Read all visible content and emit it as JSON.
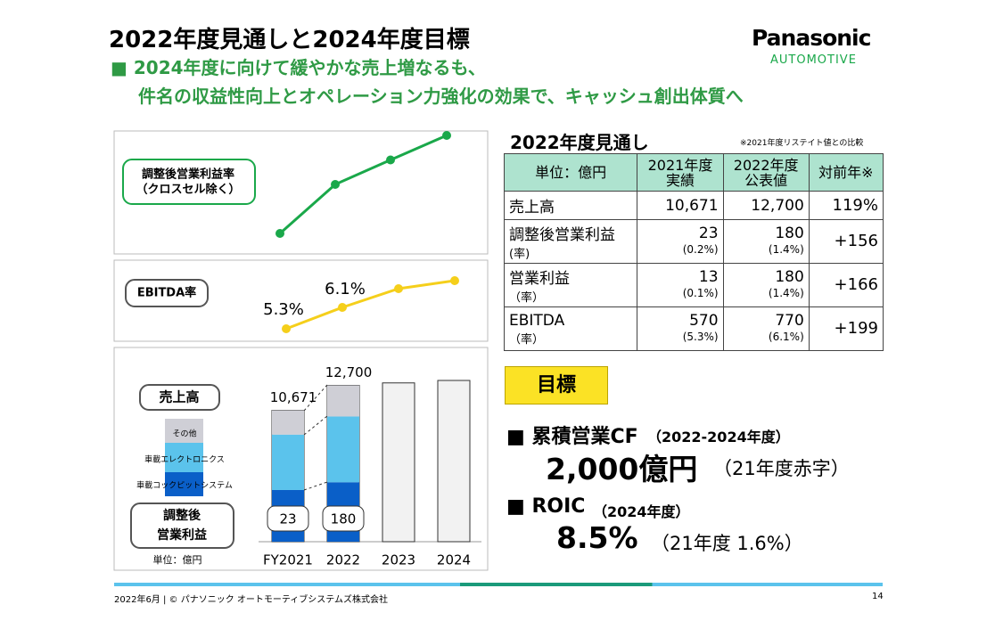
{
  "header": {
    "title": "2022年度見通しと2024年度目標",
    "subtitle": [
      "■ 2024年度に向けて緩やかな売上増なるも、",
      "件名の収益性向上とオペレーション力強化の効果で、キャッシュ創出体質へ"
    ],
    "logo": "Panasonic",
    "logo_sub": "AUTOMOTIVE"
  },
  "chart_data": [
    {
      "type": "line",
      "title": [
        "調整後営業利益率",
        "（クロスセル除く）"
      ],
      "color": "#1aa84a",
      "values": [
        0.2,
        1.4,
        2.0,
        2.6
      ]
    },
    {
      "type": "line",
      "title": [
        "EBITDA率"
      ],
      "color": "#f5cf1b",
      "values": [
        5.3,
        6.1,
        6.8,
        7.1
      ],
      "value_labels": [
        "5.3%",
        "6.1%",
        null,
        null
      ]
    },
    {
      "type": "bar",
      "title": "売上高",
      "categories": [
        "FY2021",
        "2022",
        "2023",
        "2024"
      ],
      "series": [
        {
          "name": "車載コックピットシステム",
          "color": "#0a5fc8",
          "values": [
            4200,
            4830,
            null,
            null
          ]
        },
        {
          "name": "車載エレクトロニクス",
          "color": "#5bc3ec",
          "values": [
            4500,
            5340,
            null,
            null
          ]
        },
        {
          "name": "その他",
          "color": "#cfcfd6",
          "values": [
            1971,
            2530,
            null,
            null
          ]
        }
      ],
      "totals": [
        10671,
        12700,
        12900,
        13100
      ],
      "total_labels": [
        "10,671",
        "12,700",
        null,
        null
      ],
      "profit_title": [
        "調整後",
        "営業利益"
      ],
      "profit_values": [
        23,
        180,
        null,
        null
      ],
      "unit": "単位：億円"
    }
  ],
  "table": {
    "heading": "2022年度見通し",
    "note": "※2021年度リステイト値との比較",
    "columns": [
      [
        "単位：億円"
      ],
      [
        "2021年度",
        "実績"
      ],
      [
        "2022年度",
        "公表値"
      ],
      [
        "対前年※"
      ]
    ],
    "rows": [
      [
        "売上高",
        "",
        "10,671",
        "",
        "12,700",
        "",
        "119%"
      ],
      [
        "調整後営業利益",
        "(率)",
        "23",
        "(0.2%)",
        "180",
        "(1.4%)",
        "+156"
      ],
      [
        "営業利益",
        "（率）",
        "13",
        "(0.1%)",
        "180",
        "(1.4%)",
        "+166"
      ],
      [
        "EBITDA",
        "（率）",
        "570",
        "(5.3%)",
        "770",
        "(6.1%)",
        "+199"
      ]
    ]
  },
  "targets": {
    "heading": "目標",
    "items": [
      {
        "label": "■ 累積営業CF",
        "period": "（2022-2024年度）",
        "value": "2,000億円",
        "note": "（21年度赤字）"
      },
      {
        "label": "■ ROIC",
        "period": "（2024年度）",
        "value": "8.5%",
        "note": "（21年度 1.6%）"
      }
    ]
  },
  "footer": {
    "text": "2022年6月 | © パナソニック オートモーティブシステムズ株式会社",
    "page": "14"
  }
}
